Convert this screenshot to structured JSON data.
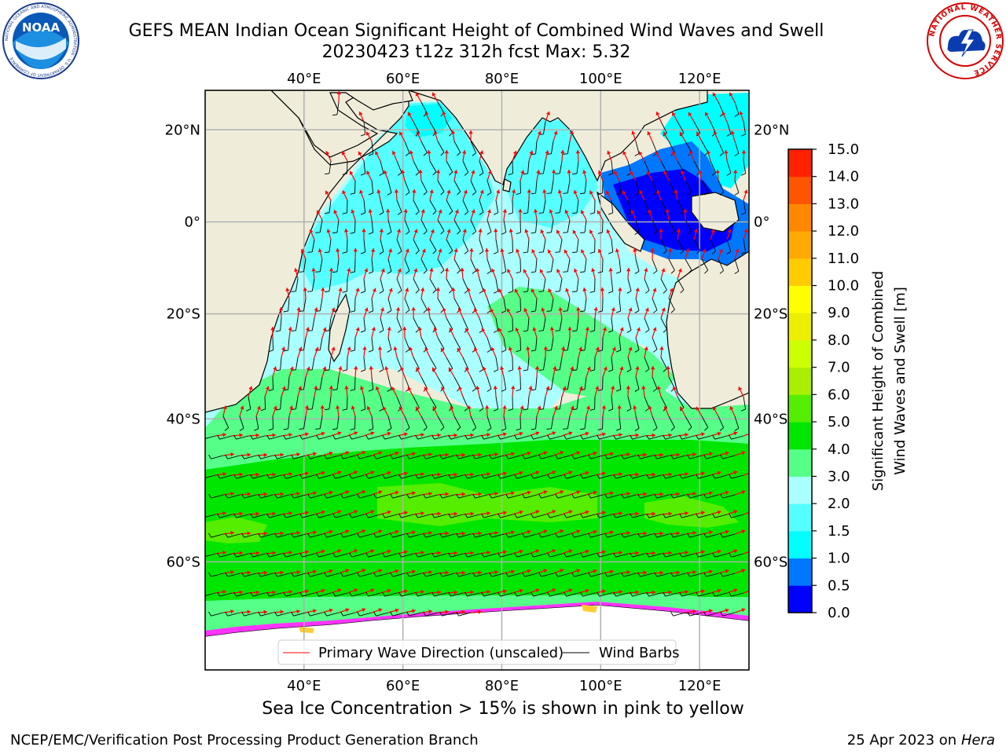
{
  "header": {
    "title_line1": "GEFS MEAN Indian Ocean Significant Height of Combined Wind Waves and Swell",
    "title_line2": "20230423 t12z 312h fcst   Max: 5.32"
  },
  "logos": {
    "noaa": {
      "label": "NOAA",
      "ring_text": "NATIONAL OCEANIC AND ATMOSPHERIC ADMINISTRATION · U.S. DEPARTMENT OF COMMERCE"
    },
    "nws": {
      "ring_text": "NATIONAL WEATHER SERVICE"
    }
  },
  "map": {
    "lon_ticks": [
      {
        "lon": 40,
        "label": "40°E"
      },
      {
        "lon": 60,
        "label": "60°E"
      },
      {
        "lon": 80,
        "label": "80°E"
      },
      {
        "lon": 100,
        "label": "100°E"
      },
      {
        "lon": 120,
        "label": "120°E"
      }
    ],
    "lat_ticks": [
      {
        "lat": 20,
        "label": "20°N"
      },
      {
        "lat": 0,
        "label": "0°"
      },
      {
        "lat": -20,
        "label": "20°S"
      },
      {
        "lat": -40,
        "label": "40°S"
      },
      {
        "lat": -60,
        "label": "60°S"
      }
    ],
    "extent": {
      "lon_min": 20,
      "lon_max": 130,
      "lat_min": -70,
      "lat_max": 28
    },
    "grid": true,
    "legend": {
      "position": "bottom-center",
      "items": [
        {
          "label": "Primary Wave Direction (unscaled)",
          "color": "#ff0000"
        },
        {
          "label": "Wind Barbs",
          "color": "#000000"
        }
      ]
    },
    "colors": {
      "land": "#efedda",
      "sea_ice_low": "#ff33ff",
      "sea_ice_high": "#ffcc33",
      "ice_sheet": "#ffffff",
      "grid": "#b0b0b0"
    }
  },
  "colorbar": {
    "label_line1": "Significant Height of Combined",
    "label_line2": "Wind Waves and Swell [m]",
    "ticks": [
      "0.0",
      "0.5",
      "1.0",
      "1.5",
      "2.0",
      "3.0",
      "4.0",
      "5.0",
      "6.0",
      "7.0",
      "8.0",
      "9.0",
      "10.0",
      "11.0",
      "12.0",
      "13.0",
      "14.0",
      "15.0"
    ],
    "colors": [
      "#0000ff",
      "#0077ff",
      "#00ffff",
      "#55ffff",
      "#aaffff",
      "#55ff88",
      "#00e600",
      "#55ee00",
      "#aaee00",
      "#ccff00",
      "#eeee00",
      "#ffff00",
      "#ffcc00",
      "#ffaa00",
      "#ff8800",
      "#ff5500",
      "#ff2200"
    ]
  },
  "caption": "Sea Ice Concentration > 15% is shown in pink to yellow",
  "footer": {
    "left": "NCEP/EMC/Verification Post Processing Product Generation Branch",
    "right_prefix": "25 Apr 2023 on ",
    "right_host": "Hera"
  }
}
